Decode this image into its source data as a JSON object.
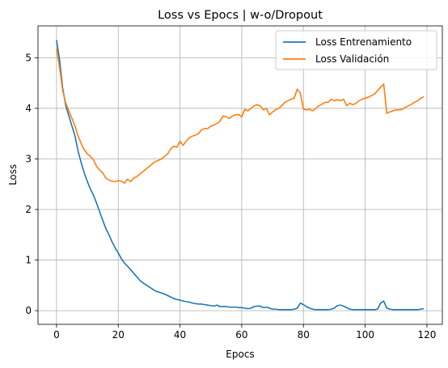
{
  "chart_data": {
    "type": "line",
    "title": "Loss vs Epocs | w-o/Dropout",
    "xlabel": "Epocs",
    "ylabel": "Loss",
    "xlim": [
      -6,
      125
    ],
    "ylim": [
      -0.27,
      5.63
    ],
    "x_ticks": [
      0,
      20,
      40,
      60,
      80,
      100,
      120
    ],
    "y_ticks": [
      0,
      1,
      2,
      3,
      4,
      5
    ],
    "grid": true,
    "legend_position": "top-right",
    "series": [
      {
        "name": "Loss Entrenamiento",
        "color": "#1f77b4",
        "points": [
          [
            0,
            5.35
          ],
          [
            1,
            4.95
          ],
          [
            2,
            4.4
          ],
          [
            3,
            4.05
          ],
          [
            4,
            3.85
          ],
          [
            5,
            3.65
          ],
          [
            6,
            3.45
          ],
          [
            7,
            3.15
          ],
          [
            8,
            2.92
          ],
          [
            9,
            2.72
          ],
          [
            10,
            2.55
          ],
          [
            11,
            2.4
          ],
          [
            12,
            2.28
          ],
          [
            13,
            2.12
          ],
          [
            14,
            1.95
          ],
          [
            15,
            1.78
          ],
          [
            16,
            1.62
          ],
          [
            17,
            1.5
          ],
          [
            18,
            1.36
          ],
          [
            19,
            1.24
          ],
          [
            20,
            1.14
          ],
          [
            21,
            1.03
          ],
          [
            22,
            0.94
          ],
          [
            23,
            0.88
          ],
          [
            24,
            0.81
          ],
          [
            25,
            0.74
          ],
          [
            26,
            0.67
          ],
          [
            27,
            0.6
          ],
          [
            28,
            0.55
          ],
          [
            29,
            0.51
          ],
          [
            30,
            0.47
          ],
          [
            31,
            0.43
          ],
          [
            32,
            0.39
          ],
          [
            33,
            0.37
          ],
          [
            34,
            0.35
          ],
          [
            35,
            0.33
          ],
          [
            36,
            0.3
          ],
          [
            37,
            0.27
          ],
          [
            38,
            0.24
          ],
          [
            39,
            0.22
          ],
          [
            40,
            0.21
          ],
          [
            41,
            0.19
          ],
          [
            42,
            0.18
          ],
          [
            43,
            0.17
          ],
          [
            44,
            0.15
          ],
          [
            45,
            0.14
          ],
          [
            46,
            0.13
          ],
          [
            47,
            0.13
          ],
          [
            48,
            0.12
          ],
          [
            49,
            0.11
          ],
          [
            50,
            0.1
          ],
          [
            51,
            0.09
          ],
          [
            52,
            0.11
          ],
          [
            53,
            0.08
          ],
          [
            54,
            0.08
          ],
          [
            55,
            0.08
          ],
          [
            56,
            0.07
          ],
          [
            57,
            0.07
          ],
          [
            58,
            0.07
          ],
          [
            59,
            0.06
          ],
          [
            60,
            0.06
          ],
          [
            61,
            0.05
          ],
          [
            62,
            0.04
          ],
          [
            63,
            0.05
          ],
          [
            64,
            0.08
          ],
          [
            65,
            0.09
          ],
          [
            66,
            0.09
          ],
          [
            67,
            0.06
          ],
          [
            68,
            0.07
          ],
          [
            69,
            0.05
          ],
          [
            70,
            0.03
          ],
          [
            71,
            0.03
          ],
          [
            72,
            0.02
          ],
          [
            73,
            0.02
          ],
          [
            74,
            0.02
          ],
          [
            75,
            0.02
          ],
          [
            76,
            0.02
          ],
          [
            77,
            0.03
          ],
          [
            78,
            0.05
          ],
          [
            79,
            0.15
          ],
          [
            80,
            0.12
          ],
          [
            81,
            0.08
          ],
          [
            82,
            0.05
          ],
          [
            83,
            0.03
          ],
          [
            84,
            0.02
          ],
          [
            85,
            0.02
          ],
          [
            86,
            0.02
          ],
          [
            87,
            0.02
          ],
          [
            88,
            0.02
          ],
          [
            89,
            0.03
          ],
          [
            90,
            0.05
          ],
          [
            91,
            0.1
          ],
          [
            92,
            0.11
          ],
          [
            93,
            0.09
          ],
          [
            94,
            0.06
          ],
          [
            95,
            0.03
          ],
          [
            96,
            0.02
          ],
          [
            97,
            0.02
          ],
          [
            98,
            0.02
          ],
          [
            99,
            0.02
          ],
          [
            100,
            0.02
          ],
          [
            101,
            0.02
          ],
          [
            102,
            0.02
          ],
          [
            103,
            0.02
          ],
          [
            104,
            0.03
          ],
          [
            105,
            0.15
          ],
          [
            106,
            0.19
          ],
          [
            107,
            0.05
          ],
          [
            108,
            0.03
          ],
          [
            109,
            0.02
          ],
          [
            110,
            0.02
          ],
          [
            111,
            0.02
          ],
          [
            112,
            0.02
          ],
          [
            113,
            0.02
          ],
          [
            114,
            0.02
          ],
          [
            115,
            0.02
          ],
          [
            116,
            0.02
          ],
          [
            117,
            0.02
          ],
          [
            118,
            0.03
          ],
          [
            119,
            0.04
          ]
        ]
      },
      {
        "name": "Loss Validación",
        "color": "#ff7f0e",
        "points": [
          [
            0,
            5.18
          ],
          [
            1,
            4.8
          ],
          [
            2,
            4.35
          ],
          [
            3,
            4.1
          ],
          [
            4,
            3.95
          ],
          [
            5,
            3.8
          ],
          [
            6,
            3.65
          ],
          [
            7,
            3.45
          ],
          [
            8,
            3.3
          ],
          [
            9,
            3.18
          ],
          [
            10,
            3.1
          ],
          [
            11,
            3.05
          ],
          [
            12,
            2.98
          ],
          [
            13,
            2.85
          ],
          [
            14,
            2.78
          ],
          [
            15,
            2.72
          ],
          [
            16,
            2.62
          ],
          [
            17,
            2.58
          ],
          [
            18,
            2.56
          ],
          [
            19,
            2.55
          ],
          [
            20,
            2.57
          ],
          [
            21,
            2.56
          ],
          [
            22,
            2.52
          ],
          [
            23,
            2.6
          ],
          [
            24,
            2.55
          ],
          [
            25,
            2.62
          ],
          [
            26,
            2.65
          ],
          [
            27,
            2.7
          ],
          [
            28,
            2.75
          ],
          [
            29,
            2.8
          ],
          [
            30,
            2.85
          ],
          [
            31,
            2.9
          ],
          [
            32,
            2.95
          ],
          [
            33,
            2.97
          ],
          [
            34,
            3.0
          ],
          [
            35,
            3.05
          ],
          [
            36,
            3.1
          ],
          [
            37,
            3.2
          ],
          [
            38,
            3.25
          ],
          [
            39,
            3.23
          ],
          [
            40,
            3.35
          ],
          [
            41,
            3.27
          ],
          [
            42,
            3.35
          ],
          [
            43,
            3.42
          ],
          [
            44,
            3.45
          ],
          [
            45,
            3.47
          ],
          [
            46,
            3.5
          ],
          [
            47,
            3.58
          ],
          [
            48,
            3.6
          ],
          [
            49,
            3.6
          ],
          [
            50,
            3.65
          ],
          [
            51,
            3.67
          ],
          [
            52,
            3.7
          ],
          [
            53,
            3.75
          ],
          [
            54,
            3.85
          ],
          [
            55,
            3.83
          ],
          [
            56,
            3.8
          ],
          [
            57,
            3.85
          ],
          [
            58,
            3.87
          ],
          [
            59,
            3.88
          ],
          [
            60,
            3.83
          ],
          [
            61,
            3.98
          ],
          [
            62,
            3.95
          ],
          [
            63,
            4.0
          ],
          [
            64,
            4.05
          ],
          [
            65,
            4.07
          ],
          [
            66,
            4.05
          ],
          [
            67,
            3.97
          ],
          [
            68,
            4.0
          ],
          [
            69,
            3.87
          ],
          [
            70,
            3.93
          ],
          [
            71,
            3.97
          ],
          [
            72,
            4.0
          ],
          [
            73,
            4.05
          ],
          [
            74,
            4.12
          ],
          [
            75,
            4.15
          ],
          [
            76,
            4.18
          ],
          [
            77,
            4.2
          ],
          [
            78,
            4.38
          ],
          [
            79,
            4.3
          ],
          [
            80,
            3.98
          ],
          [
            81,
            3.97
          ],
          [
            82,
            3.98
          ],
          [
            83,
            3.95
          ],
          [
            84,
            4.0
          ],
          [
            85,
            4.05
          ],
          [
            86,
            4.08
          ],
          [
            87,
            4.12
          ],
          [
            88,
            4.12
          ],
          [
            89,
            4.18
          ],
          [
            90,
            4.15
          ],
          [
            91,
            4.17
          ],
          [
            92,
            4.15
          ],
          [
            93,
            4.18
          ],
          [
            94,
            4.05
          ],
          [
            95,
            4.1
          ],
          [
            96,
            4.07
          ],
          [
            97,
            4.1
          ],
          [
            98,
            4.15
          ],
          [
            99,
            4.18
          ],
          [
            100,
            4.2
          ],
          [
            101,
            4.22
          ],
          [
            102,
            4.25
          ],
          [
            103,
            4.28
          ],
          [
            104,
            4.35
          ],
          [
            105,
            4.42
          ],
          [
            106,
            4.48
          ],
          [
            107,
            3.9
          ],
          [
            108,
            3.93
          ],
          [
            109,
            3.95
          ],
          [
            110,
            3.97
          ],
          [
            111,
            3.97
          ],
          [
            112,
            3.98
          ],
          [
            113,
            4.02
          ],
          [
            114,
            4.05
          ],
          [
            115,
            4.08
          ],
          [
            116,
            4.12
          ],
          [
            117,
            4.15
          ],
          [
            118,
            4.2
          ],
          [
            119,
            4.23
          ]
        ]
      }
    ]
  }
}
